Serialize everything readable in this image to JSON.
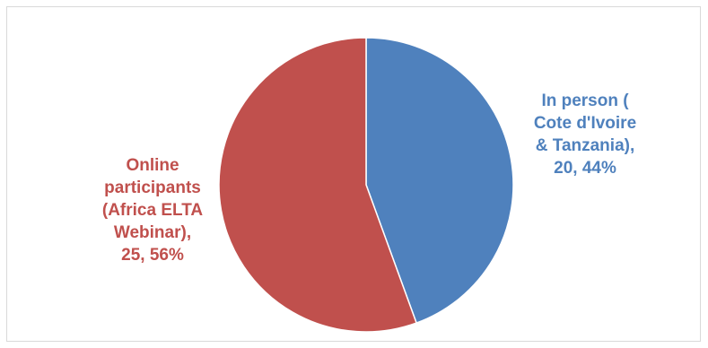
{
  "chart_data": {
    "type": "pie",
    "title": "",
    "series": [
      {
        "values": [
          20,
          25
        ],
        "percentages": [
          44,
          56
        ]
      }
    ],
    "slices": [
      {
        "label": "In person ( Cote d'Ivoire & Tanzania)",
        "value": 20,
        "percent": 44,
        "color": "#4f81bd",
        "label_lines": [
          "In person (",
          "Cote d'Ivoire",
          "& Tanzania),",
          "20, 44%"
        ]
      },
      {
        "label": "Online participants (Africa ELTA Webinar)",
        "value": 25,
        "percent": 56,
        "color": "#c0504d",
        "label_lines": [
          "Online",
          "participants",
          "(Africa ELTA",
          "Webinar),",
          "25, 56%"
        ]
      }
    ],
    "start_angle": "12 o'clock",
    "direction": "clockwise",
    "legend": "none",
    "data_labels": "category, value, percentage"
  }
}
